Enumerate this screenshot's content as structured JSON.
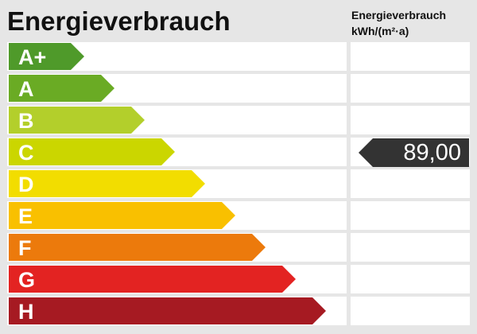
{
  "title": "Energieverbrauch",
  "unit_header": {
    "line1": "Energieverbrauch",
    "line2": "kWh/(m²·a)"
  },
  "classes": [
    {
      "label": "A+",
      "color": "#4f9a2a"
    },
    {
      "label": "A",
      "color": "#6aab24"
    },
    {
      "label": "B",
      "color": "#b3cf2b"
    },
    {
      "label": "C",
      "color": "#cbd600"
    },
    {
      "label": "D",
      "color": "#f2dd00"
    },
    {
      "label": "E",
      "color": "#f9c000"
    },
    {
      "label": "F",
      "color": "#ec7a0c"
    },
    {
      "label": "G",
      "color": "#e32322"
    },
    {
      "label": "H",
      "color": "#a61a22"
    }
  ],
  "indicator": {
    "value": "89,00",
    "class": "C",
    "color": "#333333"
  }
}
